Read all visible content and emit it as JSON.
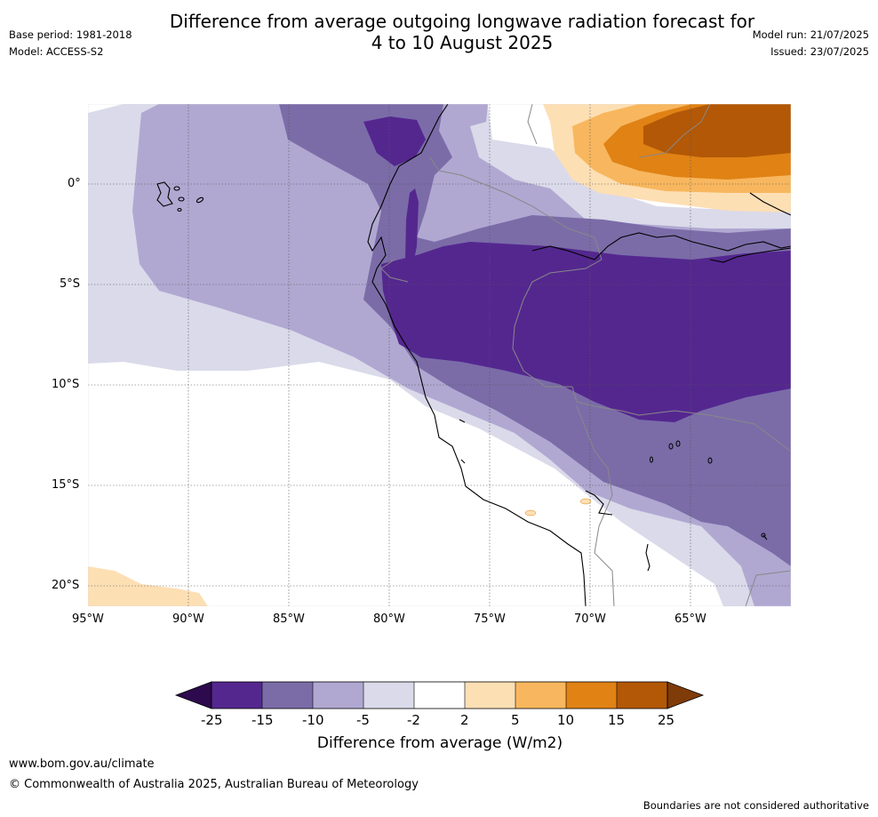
{
  "header": {
    "title_line1": "Difference from average outgoing longwave radiation forecast for",
    "title_line2": "4 to 10 August 2025",
    "base_period": "Base period: 1981-2018",
    "model": "Model: ACCESS-S2",
    "model_run": "Model run: 21/07/2025",
    "issued": "Issued: 23/07/2025"
  },
  "map": {
    "lon_ticks": [
      "95°W",
      "90°W",
      "85°W",
      "80°W",
      "75°W",
      "70°W",
      "65°W"
    ],
    "lat_ticks": [
      "0°",
      "5°S",
      "10°S",
      "15°S",
      "20°S"
    ],
    "extent": {
      "lon_west": -95,
      "lon_east": -60,
      "lat_north": 4,
      "lat_south": -21
    }
  },
  "colorbar": {
    "title": "Difference from average (W/m2)",
    "ticks": [
      "-25",
      "-15",
      "-10",
      "-5",
      "-2",
      "2",
      "5",
      "10",
      "15",
      "25"
    ],
    "colors": {
      "below_-25": "#2d0a4e",
      "-25_-15": "#54278f",
      "-15_-10": "#7b6ca8",
      "-10_-5": "#b0a8d1",
      "-5_-2": "#dadaea",
      "-2_2": "#ffffff",
      "2_5": "#fddfb4",
      "5_10": "#f8b75e",
      "10_15": "#e08214",
      "15_25": "#b35806",
      "above_25": "#7f3b08"
    }
  },
  "footer": {
    "url": "www.bom.gov.au/climate",
    "copyright": "© Commonwealth of Australia 2025, Australian Bureau of Meteorology",
    "disclaimer": "Boundaries are not considered authoritative"
  }
}
